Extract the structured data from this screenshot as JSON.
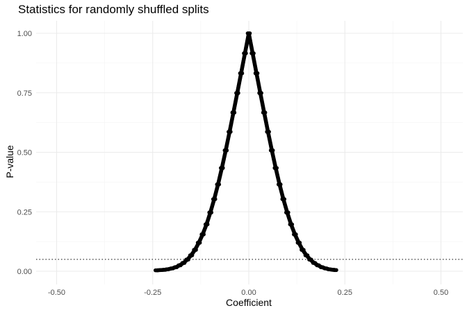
{
  "chart_data": {
    "type": "scatter",
    "title": "Statistics for randomly shuffled splits",
    "xlabel": "Coefficient",
    "ylabel": "P-value",
    "xlim": [
      -0.55,
      0.55
    ],
    "ylim": [
      0,
      1
    ],
    "x_ticks": [
      -0.5,
      -0.25,
      0,
      0.25,
      0.5
    ],
    "x_tick_labels": [
      "-0.50",
      "-0.25",
      "0.00",
      "0.25",
      "0.50"
    ],
    "y_ticks": [
      0,
      0.25,
      0.5,
      0.75,
      1
    ],
    "y_tick_labels": [
      "0.00",
      "0.25",
      "0.50",
      "0.75",
      "1.00"
    ],
    "grid": true,
    "reference_line": {
      "y": 0.05,
      "style": "dotted"
    },
    "series": [
      {
        "color": "#000000",
        "points": [
          [
            -0.24,
            0.004
          ],
          [
            -0.22,
            0.006
          ],
          [
            -0.212,
            0.008
          ],
          [
            -0.2,
            0.012
          ],
          [
            -0.19,
            0.017
          ],
          [
            -0.18,
            0.025
          ],
          [
            -0.17,
            0.035
          ],
          [
            -0.16,
            0.049
          ],
          [
            -0.15,
            0.067
          ],
          [
            -0.14,
            0.09
          ],
          [
            -0.13,
            0.12
          ],
          [
            -0.12,
            0.155
          ],
          [
            -0.11,
            0.197
          ],
          [
            -0.1,
            0.247
          ],
          [
            -0.09,
            0.303
          ],
          [
            -0.08,
            0.365
          ],
          [
            -0.07,
            0.434
          ],
          [
            -0.06,
            0.508
          ],
          [
            -0.05,
            0.586
          ],
          [
            -0.04,
            0.667
          ],
          [
            -0.03,
            0.749
          ],
          [
            -0.02,
            0.832
          ],
          [
            -0.01,
            0.916
          ],
          [
            0,
            1.0
          ],
          [
            0.01,
            0.916
          ],
          [
            0.02,
            0.832
          ],
          [
            0.03,
            0.749
          ],
          [
            0.04,
            0.667
          ],
          [
            0.05,
            0.586
          ],
          [
            0.06,
            0.508
          ],
          [
            0.07,
            0.434
          ],
          [
            0.08,
            0.365
          ],
          [
            0.09,
            0.303
          ],
          [
            0.1,
            0.247
          ],
          [
            0.11,
            0.197
          ],
          [
            0.12,
            0.155
          ],
          [
            0.13,
            0.12
          ],
          [
            0.14,
            0.09
          ],
          [
            0.15,
            0.067
          ],
          [
            0.16,
            0.049
          ],
          [
            0.17,
            0.035
          ],
          [
            0.18,
            0.025
          ],
          [
            0.19,
            0.017
          ],
          [
            0.2,
            0.012
          ],
          [
            0.21,
            0.008
          ],
          [
            0.22,
            0.006
          ],
          [
            0.225,
            0.005
          ]
        ]
      }
    ]
  }
}
